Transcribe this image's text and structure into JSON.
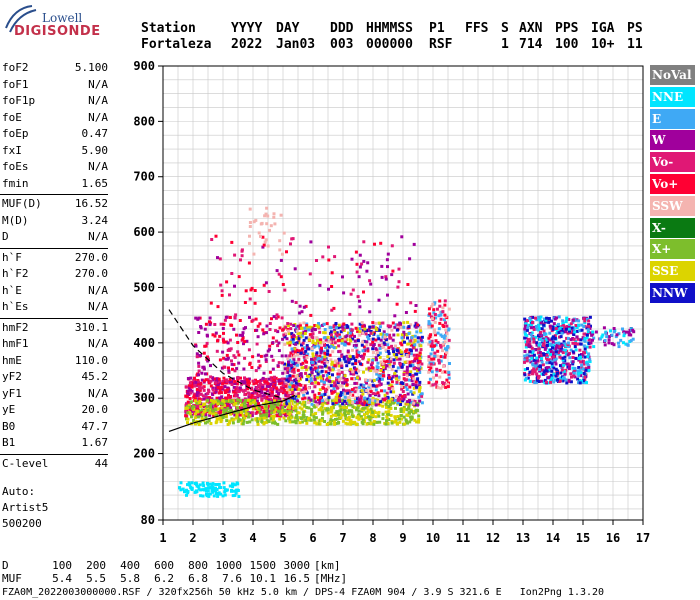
{
  "logo": {
    "top": "Lowell",
    "bottom": "DIGISONDE"
  },
  "header": {
    "labels": [
      "Station",
      "YYYY",
      "DAY",
      "DDD",
      "HHMMSS",
      "P1",
      "FFS",
      "S",
      "AXN",
      "PPS",
      "IGA",
      "PS"
    ],
    "values": [
      "Fortaleza",
      "2022",
      "Jan03",
      "003",
      "000000",
      "RSF",
      "",
      "1",
      "714",
      "100",
      "10+",
      "11"
    ]
  },
  "params": [
    {
      "k": "foF2",
      "v": "5.100"
    },
    {
      "k": "foF1",
      "v": "N/A"
    },
    {
      "k": "foF1p",
      "v": "N/A"
    },
    {
      "k": "foE",
      "v": "N/A"
    },
    {
      "k": "foEp",
      "v": "0.47"
    },
    {
      "k": "fxI",
      "v": "5.90"
    },
    {
      "k": "foEs",
      "v": "N/A"
    },
    {
      "k": "fmin",
      "v": "1.65"
    },
    {
      "sep": true
    },
    {
      "k": "MUF(D)",
      "v": "16.52"
    },
    {
      "k": "M(D)",
      "v": "3.24"
    },
    {
      "k": "D",
      "v": "N/A"
    },
    {
      "sep": true
    },
    {
      "k": "h`F",
      "v": "270.0"
    },
    {
      "k": "h`F2",
      "v": "270.0"
    },
    {
      "k": "h`E",
      "v": "N/A"
    },
    {
      "k": "h`Es",
      "v": "N/A"
    },
    {
      "sep": true
    },
    {
      "k": "hmF2",
      "v": "310.1"
    },
    {
      "k": "hmF1",
      "v": "N/A"
    },
    {
      "k": "hmE",
      "v": "110.0"
    },
    {
      "k": "yF2",
      "v": "45.2"
    },
    {
      "k": "yF1",
      "v": "N/A"
    },
    {
      "k": "yE",
      "v": "20.0"
    },
    {
      "k": "B0",
      "v": "47.7"
    },
    {
      "k": "B1",
      "v": "1.67"
    },
    {
      "sep": true
    },
    {
      "k": "C-level",
      "v": "44"
    }
  ],
  "auto": [
    "Auto:",
    "Artist5",
    "500200"
  ],
  "legend": [
    {
      "label": "NoVal",
      "color": "#808080"
    },
    {
      "label": "NNE",
      "color": "#00e5ff"
    },
    {
      "label": "E",
      "color": "#3fa9f5"
    },
    {
      "label": "W",
      "color": "#a0009c"
    },
    {
      "label": "Vo-",
      "color": "#e01875"
    },
    {
      "label": "Vo+",
      "color": "#ff0033"
    },
    {
      "label": "SSW",
      "color": "#f4b4b0"
    },
    {
      "label": "X-",
      "color": "#0a7a12"
    },
    {
      "label": "X+",
      "color": "#7dbe2c"
    },
    {
      "label": "SSE",
      "color": "#dcd400"
    },
    {
      "label": "NNW",
      "color": "#1010c8"
    }
  ],
  "bottom": {
    "row_d": {
      "label": "D",
      "values": [
        "100",
        "200",
        "400",
        "600",
        "800",
        "1000",
        "1500",
        "3000"
      ],
      "unit": "[km]"
    },
    "row_muf": {
      "label": "MUF",
      "values": [
        "5.4",
        "5.5",
        "5.8",
        "6.2",
        "6.8",
        "7.6",
        "10.1",
        "16.5"
      ],
      "unit": "[MHz]"
    },
    "footer": "FZA0M_2022003000000.RSF / 320fx256h 50 kHz 5.0 km / DPS-4 FZA0M 904 / 3.9 S 321.6 E   Ion2Png 1.3.20"
  },
  "chart_data": {
    "type": "scatter",
    "title": "",
    "xlabel": "",
    "ylabel": "",
    "xlim": [
      1,
      17
    ],
    "ylim": [
      80,
      900
    ],
    "x_ticks": [
      1,
      2,
      3,
      4,
      5,
      6,
      7,
      8,
      9,
      10,
      11,
      12,
      13,
      14,
      15,
      16,
      17
    ],
    "y_ticks": [
      80,
      200,
      300,
      400,
      500,
      600,
      700,
      800,
      900
    ],
    "grid": true,
    "clusters": [
      {
        "name": "F-trace core",
        "x": [
          1.7,
          5.3
        ],
        "y": [
          270,
          340
        ],
        "colors": [
          "#ff0033",
          "#e01875",
          "#a0009c"
        ],
        "n": 700
      },
      {
        "name": "F-trace yellow",
        "x": [
          1.7,
          9.5
        ],
        "y": [
          255,
          300
        ],
        "colors": [
          "#dcd400",
          "#7dbe2c"
        ],
        "n": 700
      },
      {
        "name": "spread F mid",
        "x": [
          5.0,
          9.6
        ],
        "y": [
          290,
          440
        ],
        "colors": [
          "#ff0033",
          "#e01875",
          "#a0009c",
          "#f4b4b0",
          "#dcd400",
          "#1010c8",
          "#3fa9f5"
        ],
        "n": 1300
      },
      {
        "name": "spread F low",
        "x": [
          2.0,
          5.0
        ],
        "y": [
          330,
          450
        ],
        "colors": [
          "#a0009c",
          "#e01875",
          "#ff0033"
        ],
        "n": 200
      },
      {
        "name": "trace near 10 MHz",
        "x": [
          9.8,
          10.5
        ],
        "y": [
          320,
          480
        ],
        "colors": [
          "#f4b4b0",
          "#e01875",
          "#ff0033",
          "#3fa9f5"
        ],
        "n": 160
      },
      {
        "name": "cluster 13-15 MHz",
        "x": [
          13.0,
          15.2
        ],
        "y": [
          330,
          450
        ],
        "colors": [
          "#a0009c",
          "#e01875",
          "#3fa9f5",
          "#00e5ff",
          "#1010c8"
        ],
        "n": 650
      },
      {
        "name": "tail 15-16.5 MHz",
        "x": [
          15.2,
          16.7
        ],
        "y": [
          395,
          430
        ],
        "colors": [
          "#a0009c",
          "#3fa9f5",
          "#00e5ff"
        ],
        "n": 60
      },
      {
        "name": "scatter above",
        "x": [
          2.5,
          9.5
        ],
        "y": [
          450,
          600
        ],
        "colors": [
          "#a0009c",
          "#ff0033",
          "#e01875"
        ],
        "n": 120
      },
      {
        "name": "SSW high",
        "x": [
          3.8,
          5.0
        ],
        "y": [
          560,
          650
        ],
        "colors": [
          "#f4b4b0"
        ],
        "n": 30
      },
      {
        "name": "low cyan",
        "x": [
          1.5,
          3.5
        ],
        "y": [
          125,
          150
        ],
        "colors": [
          "#00e5ff"
        ],
        "n": 110
      }
    ],
    "lines": [
      {
        "name": "dashed",
        "style": "dashed",
        "x": [
          1.2,
          2.0,
          3.0,
          4.0,
          5.0
        ],
        "y": [
          460,
          395,
          345,
          315,
          300
        ]
      },
      {
        "name": "solid",
        "style": "solid",
        "x": [
          1.2,
          2.0,
          3.0,
          4.0,
          5.0,
          5.4
        ],
        "y": [
          240,
          255,
          270,
          285,
          295,
          305
        ]
      }
    ],
    "bottom_axis": {
      "d_km": [
        100,
        200,
        400,
        600,
        800,
        1000,
        1500,
        3000
      ],
      "muf_mhz": [
        5.4,
        5.5,
        5.8,
        6.2,
        6.8,
        7.6,
        10.1,
        16.5
      ]
    }
  }
}
